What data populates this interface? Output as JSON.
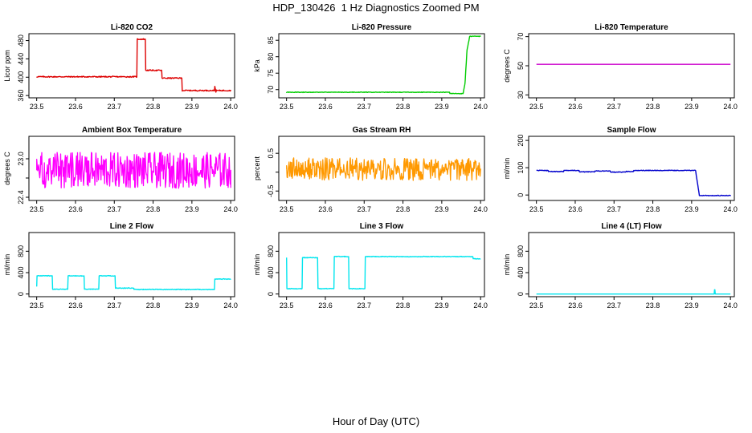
{
  "figure": {
    "title": "HDP_130426  1 Hz Diagnostics Zoomed PM",
    "xlabel": "Hour of Day (UTC)"
  },
  "chart_data": [
    {
      "type": "line",
      "title": "Li-820 CO2",
      "ylabel": "Licor ppm",
      "color": "#dd0000",
      "xlim": [
        23.48,
        24.01
      ],
      "ylim": [
        355,
        495
      ],
      "xticks": [
        23.5,
        23.6,
        23.7,
        23.8,
        23.9,
        24.0
      ],
      "xtick_labels": [
        "23.5",
        "23.6",
        "23.7",
        "23.8",
        "23.9",
        "24.0"
      ],
      "yticks": [
        360,
        400,
        440,
        480
      ],
      "ytick_labels": [
        "360",
        "400",
        "440",
        "480"
      ],
      "noise": 1.2,
      "x": [
        23.5,
        23.758,
        23.759,
        23.78,
        23.781,
        23.822,
        23.823,
        23.874,
        23.875,
        23.958,
        23.959,
        23.962,
        23.963,
        24.0
      ],
      "y": [
        401,
        401,
        483,
        483,
        415,
        415,
        398,
        398,
        371,
        371,
        380,
        368,
        371,
        371
      ]
    },
    {
      "type": "line",
      "title": "Li-820 Pressure",
      "ylabel": "kPa",
      "color": "#00cc00",
      "xlim": [
        23.48,
        24.01
      ],
      "ylim": [
        67.5,
        87
      ],
      "xticks": [
        23.5,
        23.6,
        23.7,
        23.8,
        23.9,
        24.0
      ],
      "xtick_labels": [
        "23.5",
        "23.6",
        "23.7",
        "23.8",
        "23.9",
        "24.0"
      ],
      "yticks": [
        70,
        75,
        80,
        85
      ],
      "ytick_labels": [
        "70",
        "75",
        "80",
        "85"
      ],
      "noise": 0.08,
      "x": [
        23.5,
        23.92,
        23.921,
        23.955,
        23.96,
        23.965,
        23.972,
        24.0
      ],
      "y": [
        69.2,
        69.2,
        68.8,
        68.8,
        72,
        82,
        86.2,
        86.2
      ]
    },
    {
      "type": "line",
      "title": "Li-820 Temperature",
      "ylabel": "degrees C",
      "color": "#cc00cc",
      "xlim": [
        23.48,
        24.01
      ],
      "ylim": [
        28,
        72
      ],
      "xticks": [
        23.5,
        23.6,
        23.7,
        23.8,
        23.9,
        24.0
      ],
      "xtick_labels": [
        "23.5",
        "23.6",
        "23.7",
        "23.8",
        "23.9",
        "24.0"
      ],
      "yticks": [
        30,
        50,
        70
      ],
      "ytick_labels": [
        "30",
        "50",
        "70"
      ],
      "noise": 0,
      "x": [
        23.5,
        24.0
      ],
      "y": [
        51,
        51
      ]
    },
    {
      "type": "line",
      "title": "Ambient Box Temperature",
      "ylabel": "degrees C",
      "color": "#ff00ff",
      "xlim": [
        23.48,
        24.01
      ],
      "ylim": [
        22.35,
        23.35
      ],
      "xticks": [
        23.5,
        23.6,
        23.7,
        23.8,
        23.9,
        24.0
      ],
      "xtick_labels": [
        "23.5",
        "23.6",
        "23.7",
        "23.8",
        "23.9",
        "24.0"
      ],
      "yticks": [
        22.4,
        22.7,
        23.0
      ],
      "ytick_labels": [
        "22.4",
        "",
        "23.0"
      ],
      "noise": 0.28,
      "x": [
        23.5,
        24.0
      ],
      "y": [
        22.82,
        22.82
      ]
    },
    {
      "type": "line",
      "title": "Gas Stream RH",
      "ylabel": "percent",
      "color": "#ff9900",
      "xlim": [
        23.48,
        24.01
      ],
      "ylim": [
        -0.75,
        0.95
      ],
      "xticks": [
        23.5,
        23.6,
        23.7,
        23.8,
        23.9,
        24.0
      ],
      "xtick_labels": [
        "23.5",
        "23.6",
        "23.7",
        "23.8",
        "23.9",
        "24.0"
      ],
      "yticks": [
        -0.5,
        0,
        0.5
      ],
      "ytick_labels": [
        "-0.5",
        "",
        "0.5"
      ],
      "noise": 0.3,
      "x": [
        23.5,
        24.0
      ],
      "y": [
        0.08,
        0.08
      ]
    },
    {
      "type": "line",
      "title": "Sample Flow",
      "ylabel": "ml/min",
      "color": "#0000cc",
      "xlim": [
        23.48,
        24.01
      ],
      "ylim": [
        -20,
        215
      ],
      "xticks": [
        23.5,
        23.6,
        23.7,
        23.8,
        23.9,
        24.0
      ],
      "xtick_labels": [
        "23.5",
        "23.6",
        "23.7",
        "23.8",
        "23.9",
        "24.0"
      ],
      "yticks": [
        0,
        100,
        200
      ],
      "ytick_labels": [
        "0",
        "100",
        "200"
      ],
      "noise": 1.2,
      "x": [
        23.5,
        23.53,
        23.531,
        23.57,
        23.571,
        23.61,
        23.611,
        23.65,
        23.651,
        23.69,
        23.691,
        23.73,
        23.731,
        23.75,
        23.751,
        23.91,
        23.92,
        24.0
      ],
      "y": [
        90,
        90,
        86,
        86,
        90,
        90,
        85,
        85,
        88,
        88,
        84,
        84,
        86,
        86,
        90,
        90,
        -2,
        -2
      ]
    },
    {
      "type": "line",
      "title": "Line 2 Flow",
      "ylabel": "ml/min",
      "color": "#00e5ee",
      "xlim": [
        23.48,
        24.01
      ],
      "ylim": [
        -50,
        1150
      ],
      "xticks": [
        23.5,
        23.6,
        23.7,
        23.8,
        23.9,
        24.0
      ],
      "xtick_labels": [
        "23.5",
        "23.6",
        "23.7",
        "23.8",
        "23.9",
        "24.0"
      ],
      "yticks": [
        0,
        400,
        800
      ],
      "ytick_labels": [
        "0",
        "400",
        "800"
      ],
      "noise": 6,
      "x": [
        23.5,
        23.501,
        23.54,
        23.541,
        23.58,
        23.581,
        23.622,
        23.623,
        23.66,
        23.661,
        23.702,
        23.703,
        23.75,
        23.751,
        23.958,
        23.959,
        24.0
      ],
      "y": [
        150,
        340,
        340,
        90,
        90,
        340,
        340,
        90,
        90,
        340,
        340,
        110,
        110,
        85,
        85,
        280,
        280
      ]
    },
    {
      "type": "line",
      "title": "Line 3 Flow",
      "ylabel": "ml/min",
      "color": "#00e5ee",
      "xlim": [
        23.48,
        24.01
      ],
      "ylim": [
        -50,
        1150
      ],
      "xticks": [
        23.5,
        23.6,
        23.7,
        23.8,
        23.9,
        24.0
      ],
      "xtick_labels": [
        "23.5",
        "23.6",
        "23.7",
        "23.8",
        "23.9",
        "24.0"
      ],
      "yticks": [
        0,
        400,
        800
      ],
      "ytick_labels": [
        "0",
        "400",
        "800"
      ],
      "noise": 6,
      "x": [
        23.5,
        23.501,
        23.502,
        23.54,
        23.541,
        23.58,
        23.581,
        23.622,
        23.623,
        23.66,
        23.661,
        23.702,
        23.703,
        23.98,
        23.981,
        24.0
      ],
      "y": [
        680,
        100,
        100,
        100,
        680,
        680,
        100,
        100,
        700,
        700,
        100,
        100,
        700,
        700,
        660,
        660
      ]
    },
    {
      "type": "line",
      "title": "Line 4 (LT) Flow",
      "ylabel": "ml/min",
      "color": "#00e5ee",
      "xlim": [
        23.48,
        24.01
      ],
      "ylim": [
        -50,
        1150
      ],
      "xticks": [
        23.5,
        23.6,
        23.7,
        23.8,
        23.9,
        24.0
      ],
      "xtick_labels": [
        "23.5",
        "23.6",
        "23.7",
        "23.8",
        "23.9",
        "24.0"
      ],
      "yticks": [
        0,
        400,
        800
      ],
      "ytick_labels": [
        "0",
        "400",
        "800"
      ],
      "noise": 0,
      "x": [
        23.5,
        23.958,
        23.959,
        23.96,
        23.961,
        24.0
      ],
      "y": [
        0,
        0,
        80,
        80,
        0,
        0
      ]
    }
  ]
}
